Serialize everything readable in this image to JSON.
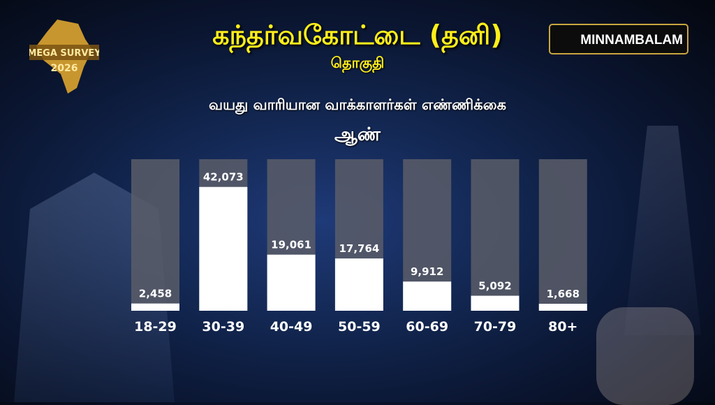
{
  "header": {
    "title": "கந்தர்வகோட்டை (தனி)",
    "subtitle": "தொகுதி",
    "logo_text": "MEGA SURVEY 2026",
    "brand": "MINNAMBALAM"
  },
  "chart_data": {
    "type": "bar",
    "title": "வயது வாரியான வாக்காளர்கள் எண்ணிக்கை",
    "subtitle": "ஆண்",
    "categories": [
      "18-29",
      "30-39",
      "40-49",
      "50-59",
      "60-69",
      "70-79",
      "80+"
    ],
    "values": [
      2458,
      42073,
      19061,
      17764,
      9912,
      5092,
      1668
    ],
    "value_labels": [
      "2,458",
      "42,073",
      "19,061",
      "17,764",
      "9,912",
      "5,092",
      "1,668"
    ],
    "bar_color": "#ffffff",
    "track_color": "#5a5d68",
    "grid": false
  }
}
